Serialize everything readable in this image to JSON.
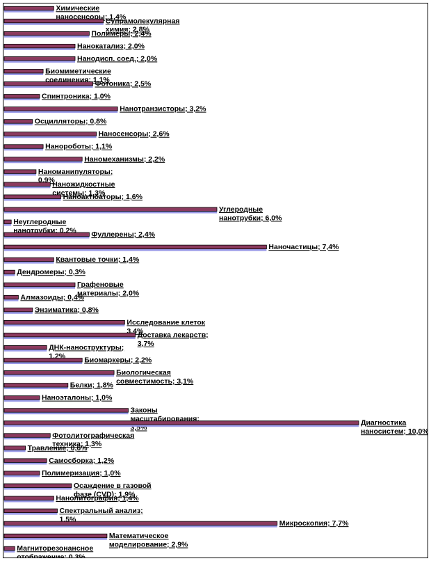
{
  "chart_data": {
    "type": "bar",
    "orientation": "horizontal",
    "xlim": [
      0,
      10
    ],
    "grid": false,
    "legend": "none",
    "colors": {
      "bar_front": "#8b3a5e",
      "bar_shadow": "#9a9ae8",
      "frame": "#000000"
    },
    "categories": [
      "Химические наносенсоры; 1,4%",
      "Супрамолекулярная химия; 2,8%",
      "Полимеры; 2,4%",
      "Нанокатализ; 2,0%",
      "Нанодисп. соед.; 2,0%",
      "Биомиметические соединения; 1,1%",
      "Фотоника; 2,5%",
      "Спинтроника; 1,0%",
      "Нанотранзисторы; 3,2%",
      "Осцилляторы; 0,8%",
      "Наносенсоры; 2,6%",
      "Нанороботы; 1,1%",
      "Наномеханизмы; 2,2%",
      "Наноманипуляторы; 0,9%",
      "Наножидкостные системы; 1,3%",
      "Наноактюаторы; 1,6%",
      "Углеродные нанотрубки; 6,0%",
      "Неуглеродные нанотрубки; 0,2%",
      "Фуллерены; 2,4%",
      "Наночастицы; 7,4%",
      "Квантовые точки; 1,4%",
      "Дендромеры; 0,3%",
      "Графеновые материалы; 2,0%",
      "Алмазоиды; 0,4%",
      "Энзиматика; 0,8%",
      "Исследование клеток 3,4%",
      "Доставка лекарств; 3,7%",
      "ДНК-наноструктуры; 1,2%",
      "Биомаркеры; 2,2%",
      "Биологическая совместимость; 3,1%",
      "Белки; 1,8%",
      "Наноэталоны; 1,0%",
      "Законы масштабирования; 3,5%",
      "Диагностика наносистем; 10,0%",
      "Фотолитографическая техника; 1,3%",
      "Травление; 0,6%",
      "Самосборка; 1,2%",
      "Полимеризация; 1,0%",
      "Осаждение в газовой фазе (CVD); 1,9%",
      "Нанолитография; 1,4%",
      "Спектральный анализ; 1,5%",
      "Микроскопия; 7,7%",
      "Математическое моделирование; 2,9%",
      "Магниторезонансное отображение; 0,3%"
    ],
    "values": [
      1.4,
      2.8,
      2.4,
      2.0,
      2.0,
      1.1,
      2.5,
      1.0,
      3.2,
      0.8,
      2.6,
      1.1,
      2.2,
      0.9,
      1.3,
      1.6,
      6.0,
      0.2,
      2.4,
      7.4,
      1.4,
      0.3,
      2.0,
      0.4,
      0.8,
      3.4,
      3.7,
      1.2,
      2.2,
      3.1,
      1.8,
      1.0,
      3.5,
      10.0,
      1.3,
      0.6,
      1.2,
      1.0,
      1.9,
      1.4,
      1.5,
      7.7,
      2.9,
      0.3
    ],
    "data_labels": [
      [
        "Химические",
        "наносенсоры; 1,4%"
      ],
      [
        "Супрамолекулярная",
        "химия; 2,8%"
      ],
      [
        "Полимеры; 2,4%"
      ],
      [
        "Нанокатализ; 2,0%"
      ],
      [
        "Нанодисп. соед.; 2,0%"
      ],
      [
        "Биомиметические",
        "соединения; 1,1%"
      ],
      [
        "Фотоника; 2,5%"
      ],
      [
        "Спинтроника; 1,0%"
      ],
      [
        "Нанотранзисторы; 3,2%"
      ],
      [
        "Осцилляторы; 0,8%"
      ],
      [
        "Наносенсоры; 2,6%"
      ],
      [
        "Нанороботы; 1,1%"
      ],
      [
        "Наномеханизмы; 2,2%"
      ],
      [
        "Наноманипуляторы;",
        "0,9%"
      ],
      [
        "Наножидкостные",
        "системы; 1,3%"
      ],
      [
        "Наноактюаторы; 1,6%"
      ],
      [
        "Углеродные",
        "нанотрубки; 6,0%"
      ],
      [
        "Неуглеродные",
        "нанотрубки; 0,2%"
      ],
      [
        "Фуллерены; 2,4%"
      ],
      [
        "Наночастицы; 7,4%"
      ],
      [
        "Квантовые точки; 1,4%"
      ],
      [
        "Дендромеры; 0,3%"
      ],
      [
        "Графеновые",
        "материалы; 2,0%"
      ],
      [
        "Алмазоиды; 0,4%"
      ],
      [
        "Энзиматика; 0,8%"
      ],
      [
        "Исследование клеток",
        "3,4%"
      ],
      [
        "Доставка лекарств;",
        "3,7%"
      ],
      [
        "ДНК-наноструктуры;",
        "1,2%"
      ],
      [
        "Биомаркеры; 2,2%"
      ],
      [
        "Биологическая",
        "совместимость; 3,1%"
      ],
      [
        "Белки; 1,8%"
      ],
      [
        "Наноэталоны; 1,0%"
      ],
      [
        "Законы",
        "масштабирования;",
        "3,5%"
      ],
      [
        "Диагностика",
        "наносистем; 10,0%"
      ],
      [
        "Фотолитографическая",
        "техника; 1,3%"
      ],
      [
        "Травление; 0,6%"
      ],
      [
        "Самосборка; 1,2%"
      ],
      [
        "Полимеризация; 1,0%"
      ],
      [
        "Осаждение в газовой",
        "фазе (CVD); 1,9%"
      ],
      [
        "Нанолитография; 1,4%"
      ],
      [
        "Спектральный анализ;",
        "1,5%"
      ],
      [
        "Микроскопия; 7,7%"
      ],
      [
        "Математическое",
        "моделирование; 2,9%"
      ],
      [
        "Магниторезонансное",
        "отображение; 0,3%"
      ]
    ]
  }
}
